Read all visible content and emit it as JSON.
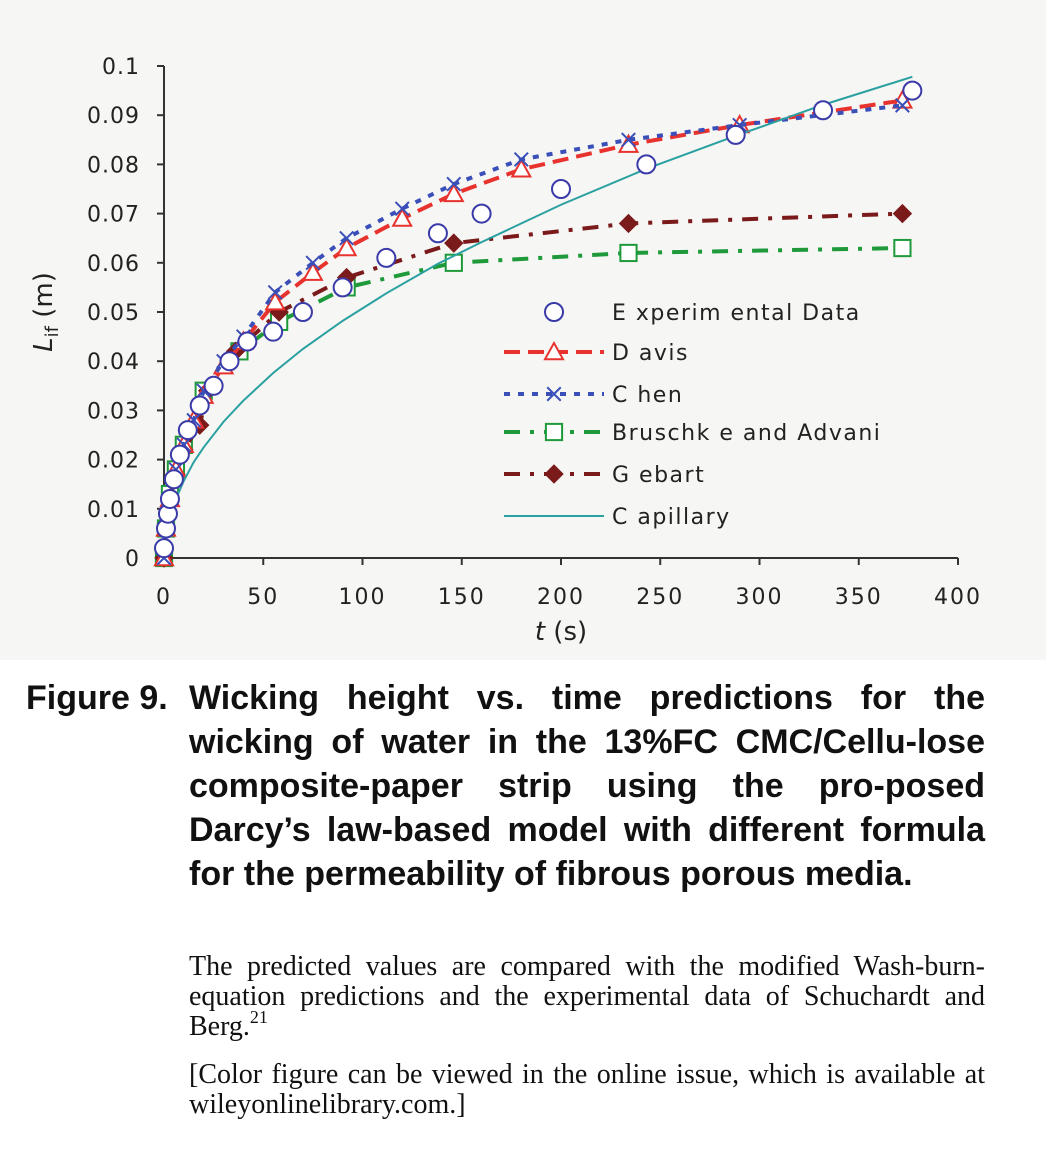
{
  "figure": {
    "label": "Figure 9.",
    "title": "Wicking height vs. time predictions for the wicking of water in the 13%FC CMC/Cellu-lose composite-paper strip using the pro-posed Darcy’s law-based model with different formula for the permeability of fibrous porous media.",
    "body": "The predicted values are compared with the modified Wash-burn-equation predictions and the experimental data of Schuchardt and Berg.",
    "reference": "21",
    "note": "[Color figure can be viewed in the online issue, which is available at wileyonlinelibrary.com.]"
  },
  "colors": {
    "experimental": "#3a3aa8",
    "davis": "#e8322e",
    "chen": "#3a4fb8",
    "bruschke": "#1f9a3a",
    "gebart": "#7a1a1a",
    "capillary": "#2aa0a0",
    "axis": "#333333"
  },
  "chart_data": {
    "type": "line",
    "xlabel": "t (s)",
    "ylabel": "Lif (m)",
    "ylabel_main": "L",
    "ylabel_sub": "if",
    "ylabel_unit": "(m)",
    "xlabel_italic": "t",
    "xlabel_unit": "(s)",
    "xlim": [
      0,
      400
    ],
    "ylim": [
      0,
      0.1
    ],
    "xticks": [
      0,
      50,
      100,
      150,
      200,
      250,
      300,
      350,
      400
    ],
    "yticks": [
      "0",
      "0.01",
      "0.02",
      "0.03",
      "0.04",
      "0.05",
      "0.06",
      "0.07",
      "0.08",
      "0.09",
      "0.1"
    ],
    "legend_position": "center-right",
    "grid": false,
    "series": [
      {
        "name": "E xperim ental Data",
        "key": "experimental",
        "marker": "circle",
        "line": "none",
        "x": [
          0,
          1,
          2,
          3,
          5,
          8,
          12,
          18,
          25,
          33,
          42,
          55,
          70,
          90,
          112,
          138,
          160,
          200,
          243,
          288,
          332,
          377
        ],
        "y": [
          0.002,
          0.006,
          0.009,
          0.012,
          0.016,
          0.021,
          0.026,
          0.031,
          0.035,
          0.04,
          0.044,
          0.046,
          0.05,
          0.055,
          0.061,
          0.066,
          0.07,
          0.075,
          0.08,
          0.086,
          0.091,
          0.095
        ]
      },
      {
        "name": "D avis",
        "key": "davis",
        "marker": "triangle",
        "line": "dashed",
        "x": [
          0,
          1,
          3,
          6,
          10,
          15,
          20,
          30,
          40,
          56,
          75,
          92,
          120,
          146,
          180,
          234,
          290,
          372
        ],
        "y": [
          0,
          0.006,
          0.012,
          0.018,
          0.023,
          0.028,
          0.033,
          0.039,
          0.044,
          0.052,
          0.058,
          0.063,
          0.069,
          0.074,
          0.079,
          0.084,
          0.088,
          0.093
        ]
      },
      {
        "name": "C hen",
        "key": "chen",
        "marker": "x",
        "line": "dotted",
        "x": [
          0,
          1,
          3,
          6,
          10,
          15,
          20,
          30,
          40,
          56,
          75,
          92,
          120,
          146,
          180,
          234,
          290,
          372
        ],
        "y": [
          0,
          0.006,
          0.012,
          0.018,
          0.023,
          0.028,
          0.034,
          0.04,
          0.045,
          0.054,
          0.06,
          0.065,
          0.071,
          0.076,
          0.081,
          0.085,
          0.088,
          0.092
        ]
      },
      {
        "name": "Bruschk e and Advani",
        "key": "bruschke",
        "marker": "square",
        "line": "dashdot",
        "x": [
          0,
          1,
          3,
          6,
          10,
          20,
          38,
          58,
          92,
          146,
          234,
          372
        ],
        "y": [
          0,
          0.006,
          0.013,
          0.018,
          0.023,
          0.034,
          0.042,
          0.048,
          0.055,
          0.06,
          0.062,
          0.063
        ]
      },
      {
        "name": "G ebart",
        "key": "gebart",
        "marker": "diamond",
        "line": "dashdot",
        "x": [
          0,
          1,
          3,
          6,
          10,
          18,
          22,
          36,
          58,
          92,
          146,
          234,
          372
        ],
        "y": [
          0,
          0.006,
          0.012,
          0.017,
          0.022,
          0.027,
          0.034,
          0.042,
          0.05,
          0.057,
          0.064,
          0.068,
          0.07
        ]
      },
      {
        "name": "C apillary",
        "key": "capillary",
        "marker": "none",
        "line": "solid",
        "x": [
          0,
          1,
          3,
          6,
          10,
          15,
          20,
          30,
          40,
          55,
          70,
          90,
          112,
          138,
          160,
          200,
          243,
          288,
          332,
          377
        ],
        "y": [
          0,
          0.0048,
          0.0085,
          0.012,
          0.0157,
          0.0195,
          0.0225,
          0.0277,
          0.032,
          0.0376,
          0.0425,
          0.0482,
          0.0538,
          0.0598,
          0.0642,
          0.0718,
          0.0791,
          0.0858,
          0.0921,
          0.0978
        ]
      }
    ]
  }
}
